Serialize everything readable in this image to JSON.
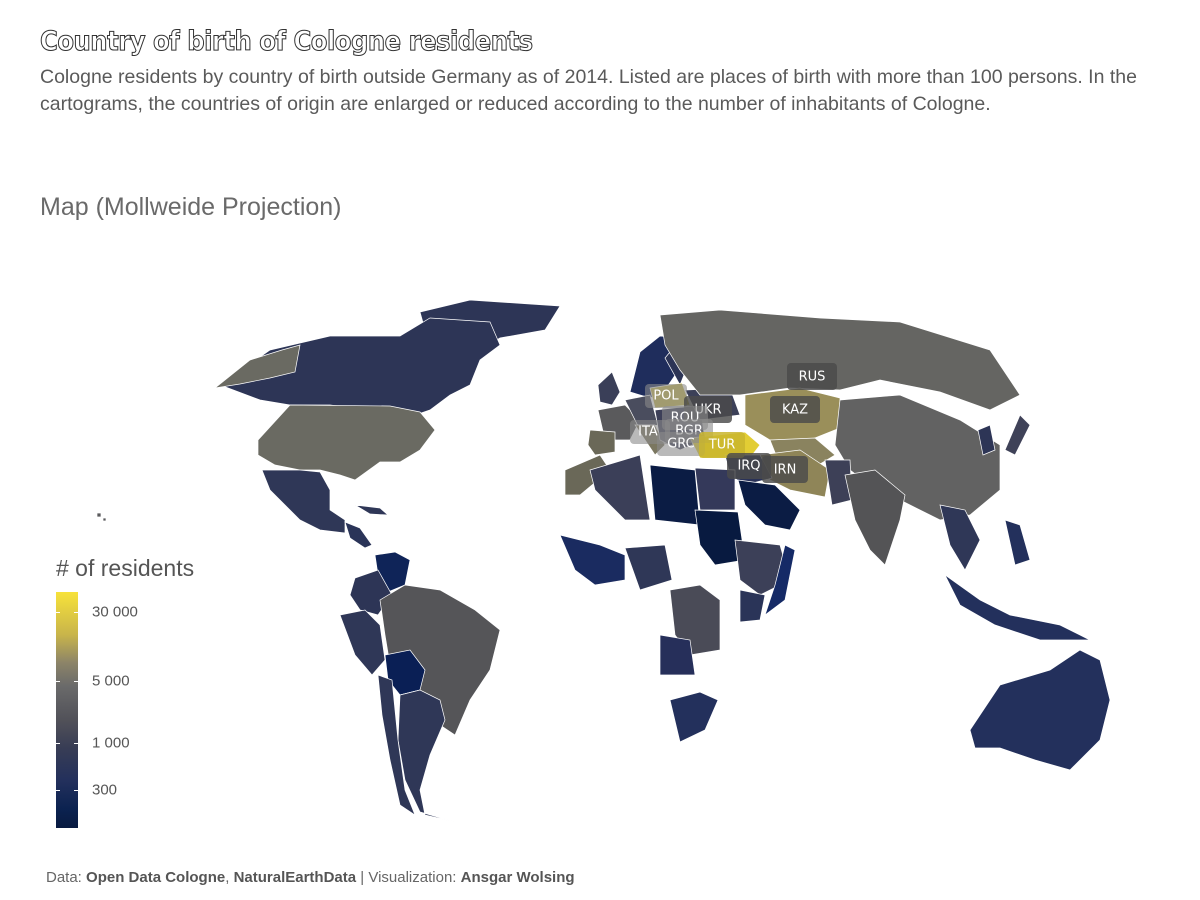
{
  "title": "Country of birth of Cologne residents",
  "subtitle": "Cologne residents by country of birth outside Germany as of 2014. Listed are places of birth with more than 100 persons. In the cartograms, the countries of origin are enlarged or reduced according to the number of inhabitants of Cologne.",
  "section_title": "Map (Mollweide Projection)",
  "legend": {
    "title": "# of residents",
    "labels": [
      "30 000",
      "5 000",
      "1 000",
      "300"
    ],
    "scale": "log",
    "colors": [
      "#081a40",
      "#23305c",
      "#505058",
      "#8c8468",
      "#f7e23a"
    ]
  },
  "labels": [
    {
      "code": "RUS"
    },
    {
      "code": "POL"
    },
    {
      "code": "UKR"
    },
    {
      "code": "KAZ"
    },
    {
      "code": "ROU"
    },
    {
      "code": "BGR"
    },
    {
      "code": "ITA"
    },
    {
      "code": "GRC"
    },
    {
      "code": "TUR"
    },
    {
      "code": "IRQ"
    },
    {
      "code": "IRN"
    }
  ],
  "caption": {
    "data_prefix": "Data: ",
    "source1": "Open Data Cologne",
    "sep": ", ",
    "source2": "NaturalEarthData",
    "viz_prefix": " | Visualization: ",
    "author": "Ansgar Wolsing"
  }
}
